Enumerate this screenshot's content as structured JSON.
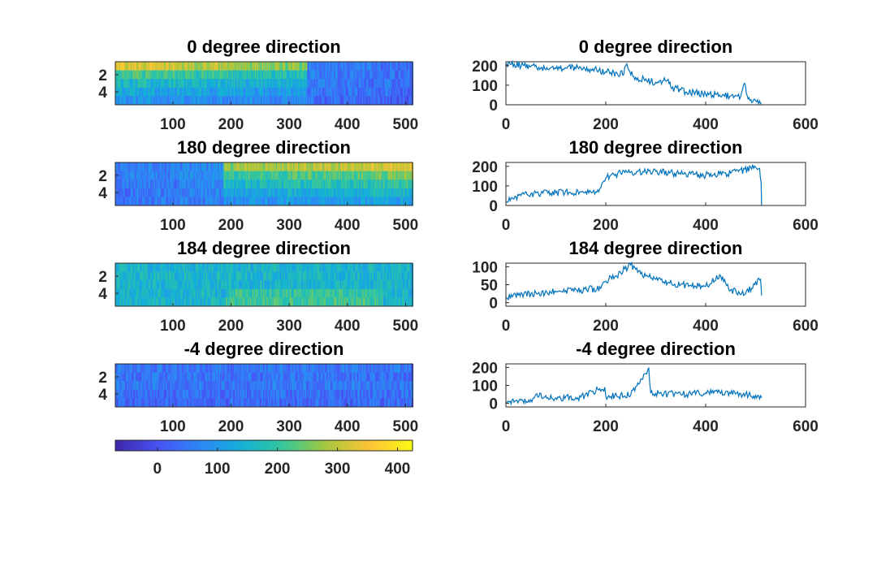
{
  "chart_data": [
    {
      "type": "heatmap",
      "title": "0 degree direction",
      "xlabel": "",
      "ylabel": "",
      "xlim": [
        1,
        512
      ],
      "ylim": [
        0.5,
        5.5
      ],
      "xticks": [
        "100",
        "200",
        "300",
        "400",
        "500"
      ],
      "yticks": [
        "2",
        "4"
      ],
      "rows": 5,
      "cols": 512,
      "row_profiles": [
        {
          "row": 1,
          "segments": [
            {
              "x": [
                1,
                330
              ],
              "value": [
                330,
                250
              ]
            },
            {
              "x": [
                330,
                512
              ],
              "value": [
                60,
                40
              ]
            }
          ]
        },
        {
          "row": 2,
          "segments": [
            {
              "x": [
                1,
                330
              ],
              "value": [
                220,
                170
              ]
            },
            {
              "x": [
                330,
                512
              ],
              "value": [
                60,
                40
              ]
            }
          ]
        },
        {
          "row": 3,
          "segments": [
            {
              "x": [
                1,
                330
              ],
              "value": [
                170,
                130
              ]
            },
            {
              "x": [
                330,
                512
              ],
              "value": [
                55,
                35
              ]
            }
          ]
        },
        {
          "row": 4,
          "segments": [
            {
              "x": [
                1,
                330
              ],
              "value": [
                130,
                100
              ]
            },
            {
              "x": [
                330,
                512
              ],
              "value": [
                50,
                30
              ]
            }
          ]
        },
        {
          "row": 5,
          "segments": [
            {
              "x": [
                1,
                330
              ],
              "value": [
                90,
                70
              ]
            },
            {
              "x": [
                330,
                512
              ],
              "value": [
                40,
                20
              ]
            }
          ]
        }
      ],
      "grid": false
    },
    {
      "type": "line",
      "title": "0 degree direction",
      "xlabel": "",
      "ylabel": "",
      "xlim": [
        0,
        600
      ],
      "ylim": [
        0,
        220
      ],
      "xticks": [
        "0",
        "200",
        "400",
        "600"
      ],
      "yticks": [
        "0",
        "100",
        "200"
      ],
      "series": [
        {
          "x": [
            1,
            50,
            100,
            150,
            200,
            236,
            240,
            260,
            300,
            325,
            330,
            360,
            400,
            450,
            470,
            478,
            485,
            500,
            512
          ],
          "values": [
            210,
            195,
            185,
            190,
            170,
            155,
            200,
            140,
            115,
            130,
            90,
            65,
            55,
            45,
            40,
            110,
            30,
            20,
            5
          ]
        }
      ],
      "grid": false
    },
    {
      "type": "heatmap",
      "title": "180 degree direction",
      "xlabel": "",
      "ylabel": "",
      "xlim": [
        1,
        512
      ],
      "ylim": [
        0.5,
        5.5
      ],
      "xticks": [
        "100",
        "200",
        "300",
        "400",
        "500"
      ],
      "yticks": [
        "2",
        "4"
      ],
      "rows": 5,
      "cols": 512,
      "row_profiles": [
        {
          "row": 1,
          "segments": [
            {
              "x": [
                1,
                185
              ],
              "value": [
                50,
                80
              ]
            },
            {
              "x": [
                185,
                512
              ],
              "value": [
                260,
                330
              ]
            }
          ]
        },
        {
          "row": 2,
          "segments": [
            {
              "x": [
                1,
                185
              ],
              "value": [
                55,
                85
              ]
            },
            {
              "x": [
                185,
                512
              ],
              "value": [
                200,
                250
              ]
            }
          ]
        },
        {
          "row": 3,
          "segments": [
            {
              "x": [
                1,
                185
              ],
              "value": [
                50,
                80
              ]
            },
            {
              "x": [
                185,
                512
              ],
              "value": [
                160,
                200
              ]
            }
          ]
        },
        {
          "row": 4,
          "segments": [
            {
              "x": [
                1,
                185
              ],
              "value": [
                45,
                75
              ]
            },
            {
              "x": [
                185,
                512
              ],
              "value": [
                120,
                160
              ]
            }
          ]
        },
        {
          "row": 5,
          "segments": [
            {
              "x": [
                1,
                185
              ],
              "value": [
                40,
                70
              ]
            },
            {
              "x": [
                185,
                512
              ],
              "value": [
                90,
                120
              ]
            }
          ]
        }
      ],
      "grid": false
    },
    {
      "type": "line",
      "title": "180 degree direction",
      "xlabel": "",
      "ylabel": "",
      "xlim": [
        0,
        600
      ],
      "ylim": [
        0,
        220
      ],
      "xticks": [
        "0",
        "200",
        "400",
        "600"
      ],
      "yticks": [
        "0",
        "100",
        "200"
      ],
      "series": [
        {
          "x": [
            1,
            20,
            50,
            100,
            150,
            180,
            190,
            200,
            220,
            250,
            300,
            350,
            400,
            450,
            500,
            508,
            511,
            512
          ],
          "values": [
            20,
            45,
            60,
            65,
            70,
            70,
            90,
            140,
            160,
            170,
            175,
            160,
            155,
            165,
            195,
            190,
            120,
            0
          ]
        }
      ],
      "grid": false
    },
    {
      "type": "heatmap",
      "title": "184 degree direction",
      "xlabel": "",
      "ylabel": "",
      "xlim": [
        1,
        512
      ],
      "ylim": [
        0.5,
        5.5
      ],
      "xticks": [
        "100",
        "200",
        "300",
        "400",
        "500"
      ],
      "yticks": [
        "2",
        "4"
      ],
      "rows": 5,
      "cols": 512,
      "row_profiles": [
        {
          "row": 1,
          "segments": [
            {
              "x": [
                1,
                512
              ],
              "value": [
                150,
                150
              ]
            }
          ]
        },
        {
          "row": 2,
          "segments": [
            {
              "x": [
                1,
                512
              ],
              "value": [
                155,
                155
              ]
            }
          ]
        },
        {
          "row": 3,
          "segments": [
            {
              "x": [
                1,
                512
              ],
              "value": [
                150,
                150
              ]
            }
          ]
        },
        {
          "row": 4,
          "segments": [
            {
              "x": [
                1,
                190
              ],
              "value": [
                150,
                150
              ]
            },
            {
              "x": [
                190,
                460
              ],
              "value": [
                200,
                200
              ]
            },
            {
              "x": [
                460,
                512
              ],
              "value": [
                150,
                150
              ]
            }
          ]
        },
        {
          "row": 5,
          "segments": [
            {
              "x": [
                1,
                190
              ],
              "value": [
                150,
                150
              ]
            },
            {
              "x": [
                190,
                460
              ],
              "value": [
                210,
                210
              ]
            },
            {
              "x": [
                460,
                512
              ],
              "value": [
                150,
                150
              ]
            }
          ]
        }
      ],
      "grid": false
    },
    {
      "type": "line",
      "title": "184 degree direction",
      "xlabel": "",
      "ylabel": "",
      "xlim": [
        0,
        600
      ],
      "ylim": [
        -10,
        110
      ],
      "xticks": [
        "0",
        "200",
        "400",
        "600"
      ],
      "yticks": [
        "0",
        "50",
        "100"
      ],
      "series": [
        {
          "x": [
            1,
            50,
            100,
            150,
            190,
            200,
            220,
            250,
            270,
            300,
            350,
            400,
            430,
            450,
            480,
            510,
            512
          ],
          "values": [
            15,
            25,
            30,
            35,
            40,
            60,
            75,
            105,
            80,
            65,
            50,
            45,
            75,
            35,
            25,
            65,
            20
          ]
        }
      ],
      "grid": false
    },
    {
      "type": "heatmap",
      "title": "-4 degree direction",
      "xlabel": "",
      "ylabel": "",
      "xlim": [
        1,
        512
      ],
      "ylim": [
        0.5,
        5.5
      ],
      "xticks": [
        "100",
        "200",
        "300",
        "400",
        "500"
      ],
      "yticks": [
        "2",
        "4"
      ],
      "rows": 5,
      "cols": 512,
      "row_profiles": [
        {
          "row": 1,
          "segments": [
            {
              "x": [
                1,
                512
              ],
              "value": [
                50,
                50
              ]
            }
          ]
        },
        {
          "row": 2,
          "segments": [
            {
              "x": [
                1,
                512
              ],
              "value": [
                45,
                45
              ]
            }
          ]
        },
        {
          "row": 3,
          "segments": [
            {
              "x": [
                1,
                512
              ],
              "value": [
                50,
                50
              ]
            }
          ]
        },
        {
          "row": 4,
          "segments": [
            {
              "x": [
                1,
                512
              ],
              "value": [
                40,
                40
              ]
            }
          ]
        },
        {
          "row": 5,
          "segments": [
            {
              "x": [
                1,
                512
              ],
              "value": [
                35,
                35
              ]
            }
          ]
        }
      ],
      "grid": false
    },
    {
      "type": "line",
      "title": "-4 degree direction",
      "xlabel": "",
      "ylabel": "",
      "xlim": [
        0,
        600
      ],
      "ylim": [
        -20,
        220
      ],
      "xticks": [
        "0",
        "200",
        "400",
        "600"
      ],
      "yticks": [
        "0",
        "100",
        "200"
      ],
      "series": [
        {
          "x": [
            1,
            20,
            50,
            60,
            100,
            150,
            198,
            200,
            250,
            286,
            290,
            300,
            350,
            400,
            450,
            500,
            512
          ],
          "values": [
            5,
            15,
            20,
            50,
            30,
            35,
            90,
            40,
            45,
            200,
            60,
            55,
            50,
            60,
            55,
            45,
            30
          ]
        }
      ],
      "grid": false
    }
  ],
  "colorbar": {
    "colormap": "parula",
    "range": [
      -70,
      425
    ],
    "ticks": [
      "0",
      "100",
      "200",
      "300",
      "400"
    ]
  }
}
